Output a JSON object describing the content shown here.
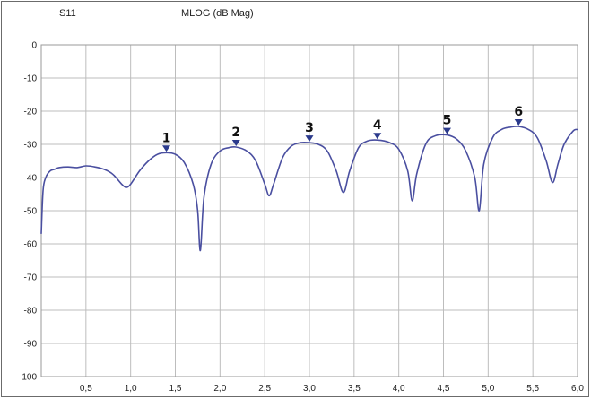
{
  "header": {
    "trace_label": "S11",
    "format_label": "MLOG (dB Mag)"
  },
  "chart_data": {
    "type": "line",
    "xlim": [
      0,
      6.0
    ],
    "ylim": [
      -100,
      0
    ],
    "x_ticks": [
      0.5,
      1.0,
      1.5,
      2.0,
      2.5,
      3.0,
      3.5,
      4.0,
      4.5,
      5.0,
      5.5,
      6.0
    ],
    "x_tick_labels": [
      "0,5",
      "1,0",
      "1,5",
      "2,0",
      "2,5",
      "3,0",
      "3,5",
      "4,0",
      "4,5",
      "5,0",
      "5,5",
      "6,0"
    ],
    "y_ticks": [
      0,
      -10,
      -20,
      -30,
      -40,
      -50,
      -60,
      -70,
      -80,
      -90,
      -100
    ],
    "y_tick_labels": [
      "0",
      "-10",
      "-20",
      "-30",
      "-40",
      "-50",
      "-60",
      "-70",
      "-80",
      "-90",
      "-100"
    ],
    "grid": true,
    "line_color": "#4a4fa0",
    "marker_color": "#2b3a8c",
    "series": [
      {
        "x": [
          0.0,
          0.02,
          0.05,
          0.1,
          0.15,
          0.2,
          0.3,
          0.4,
          0.5,
          0.6,
          0.7,
          0.8,
          0.9,
          0.95,
          1.0,
          1.1,
          1.2,
          1.3,
          1.4,
          1.5,
          1.6,
          1.7,
          1.75,
          1.78,
          1.82,
          1.9,
          2.0,
          2.1,
          2.18,
          2.3,
          2.4,
          2.5,
          2.55,
          2.6,
          2.7,
          2.8,
          2.9,
          3.0,
          3.1,
          3.2,
          3.3,
          3.38,
          3.45,
          3.55,
          3.65,
          3.76,
          3.9,
          4.0,
          4.1,
          4.15,
          4.2,
          4.3,
          4.4,
          4.54,
          4.65,
          4.75,
          4.85,
          4.9,
          4.95,
          5.05,
          5.15,
          5.25,
          5.34,
          5.45,
          5.55,
          5.65,
          5.72,
          5.78,
          5.85,
          5.95,
          6.0
        ],
        "y": [
          -57,
          -44,
          -40,
          -38,
          -37.5,
          -37,
          -36.8,
          -37,
          -36.5,
          -36.8,
          -37.5,
          -39,
          -42,
          -43,
          -42,
          -38,
          -35,
          -33,
          -32.5,
          -33,
          -35.5,
          -42,
          -50,
          -62,
          -46,
          -36,
          -32,
          -31,
          -30.8,
          -32,
          -35,
          -42,
          -45.5,
          -42,
          -34,
          -30.5,
          -29.5,
          -29.5,
          -30,
          -32,
          -38,
          -44.5,
          -38,
          -31,
          -29,
          -28.7,
          -29.5,
          -31.5,
          -38,
          -47,
          -39,
          -30,
          -27.5,
          -27.2,
          -28.5,
          -32,
          -40,
          -50,
          -36,
          -28,
          -25.5,
          -24.8,
          -24.6,
          -25.5,
          -28,
          -35,
          -41.5,
          -36,
          -30,
          -26,
          -25.5
        ]
      }
    ],
    "markers": [
      {
        "label": "1",
        "x": 1.4,
        "y": -32.5
      },
      {
        "label": "2",
        "x": 2.18,
        "y": -30.8
      },
      {
        "label": "3",
        "x": 3.0,
        "y": -29.5
      },
      {
        "label": "4",
        "x": 3.76,
        "y": -28.7
      },
      {
        "label": "5",
        "x": 4.54,
        "y": -27.2
      },
      {
        "label": "6",
        "x": 5.34,
        "y": -24.6
      }
    ]
  }
}
